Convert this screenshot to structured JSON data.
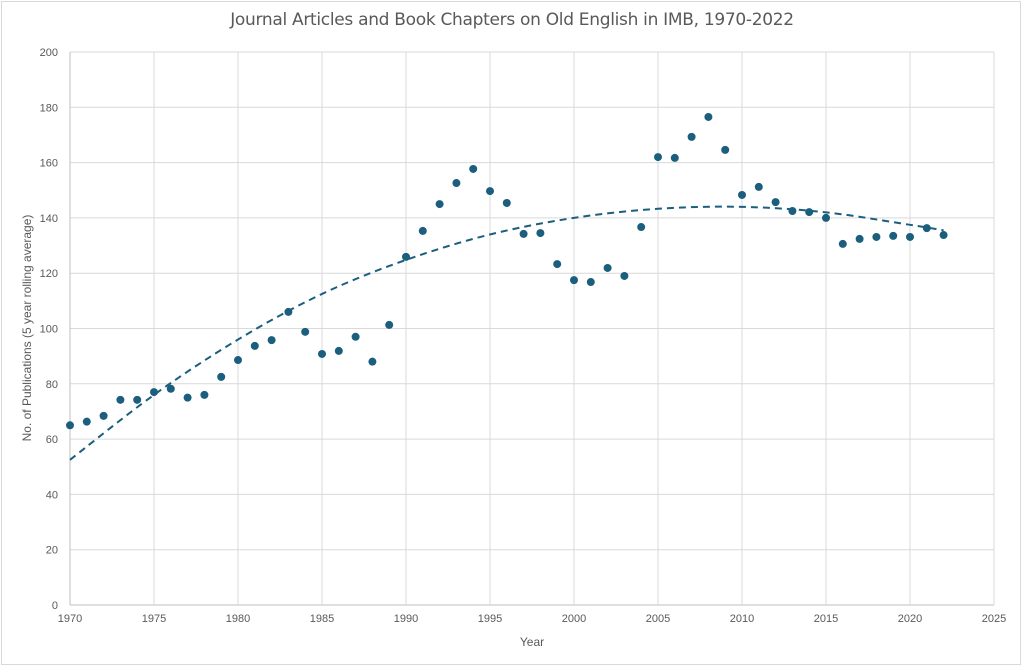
{
  "chart_data": {
    "type": "scatter",
    "title": "Journal Articles and Book Chapters on Old English in IMB, 1970-2022",
    "xlabel": "Year",
    "ylabel": "No. of Publications (5 year rolling average)",
    "xlim": [
      1970,
      2025
    ],
    "ylim": [
      0,
      200
    ],
    "xticks": [
      1970,
      1975,
      1980,
      1985,
      1990,
      1995,
      2000,
      2005,
      2010,
      2015,
      2020,
      2025
    ],
    "yticks": [
      0,
      20,
      40,
      60,
      80,
      100,
      120,
      140,
      160,
      180,
      200
    ],
    "grid": true,
    "legend": "none",
    "colors": {
      "points": "#1b5e7e",
      "trend": "#1b5e7e",
      "grid": "#d9d9d9",
      "text": "#595959"
    },
    "series": [
      {
        "name": "Publications (5 year rolling average)",
        "x": [
          1970,
          1971,
          1972,
          1973,
          1974,
          1975,
          1976,
          1977,
          1978,
          1979,
          1980,
          1981,
          1982,
          1983,
          1984,
          1985,
          1986,
          1987,
          1988,
          1989,
          1990,
          1991,
          1992,
          1993,
          1994,
          1995,
          1996,
          1997,
          1998,
          1999,
          2000,
          2001,
          2002,
          2003,
          2004,
          2005,
          2006,
          2007,
          2008,
          2009,
          2010,
          2011,
          2012,
          2013,
          2014,
          2015,
          2016,
          2017,
          2018,
          2019,
          2020,
          2021,
          2022
        ],
        "y": [
          65,
          66.3,
          68.4,
          74.2,
          74.2,
          77,
          78.2,
          75,
          76,
          82.5,
          88.6,
          93.7,
          95.8,
          106,
          98.8,
          90.8,
          91.9,
          97,
          88,
          101.3,
          125.9,
          135.3,
          145,
          152.6,
          157.7,
          149.7,
          145.4,
          134.2,
          134.5,
          123.3,
          117.5,
          116.8,
          121.9,
          119,
          136.7,
          162,
          161.7,
          169.3,
          176.5,
          164.6,
          148.3,
          151.2,
          145.7,
          142.5,
          142.1,
          140,
          130.6,
          132.4,
          133.1,
          133.5,
          133.1,
          136.3,
          133.8
        ]
      }
    ],
    "trendline": {
      "name": "Polynomial trendline",
      "style": "dashed",
      "x": [
        1970,
        1975,
        1980,
        1985,
        1990,
        1995,
        2000,
        2005,
        2010,
        2015,
        2020,
        2022
      ],
      "y": [
        52.5,
        76,
        96,
        112.5,
        124.8,
        134,
        140,
        143.3,
        144,
        142,
        137.5,
        135.5
      ]
    }
  }
}
